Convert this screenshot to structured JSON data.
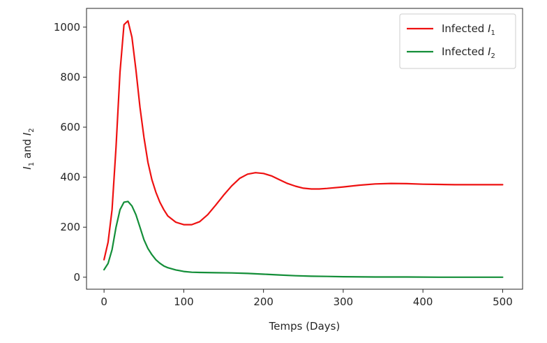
{
  "chart_data": {
    "type": "line",
    "title": "",
    "xlabel": "Temps (Days)",
    "ylabel": "I1 and I2",
    "xlim": [
      -22,
      525
    ],
    "ylim": [
      -48,
      1075
    ],
    "xticks": [
      0,
      100,
      200,
      300,
      400,
      500
    ],
    "yticks": [
      0,
      200,
      400,
      600,
      800,
      1000
    ],
    "grid": false,
    "legend_position": "top-right",
    "series": [
      {
        "name": "Infected I1",
        "label_base": "Infected I",
        "label_sub": "1",
        "color": "#ee1111",
        "x": [
          0,
          5,
          10,
          15,
          20,
          25,
          30,
          35,
          40,
          45,
          50,
          55,
          60,
          65,
          70,
          75,
          80,
          90,
          100,
          110,
          120,
          130,
          140,
          150,
          160,
          170,
          180,
          190,
          200,
          210,
          220,
          230,
          240,
          250,
          260,
          270,
          280,
          300,
          320,
          340,
          360,
          380,
          400,
          420,
          440,
          460,
          480,
          500
        ],
        "y": [
          70,
          140,
          270,
          520,
          820,
          1010,
          1025,
          960,
          830,
          680,
          560,
          460,
          390,
          340,
          300,
          270,
          245,
          220,
          210,
          210,
          222,
          250,
          288,
          328,
          365,
          395,
          412,
          418,
          415,
          405,
          390,
          375,
          364,
          356,
          353,
          353,
          355,
          361,
          368,
          373,
          375,
          374,
          372,
          371,
          370,
          370,
          370,
          370
        ]
      },
      {
        "name": "Infected I2",
        "label_base": "Infected I",
        "label_sub": "2",
        "color": "#138e38",
        "x": [
          0,
          5,
          10,
          15,
          20,
          25,
          30,
          35,
          40,
          45,
          50,
          55,
          60,
          65,
          70,
          75,
          80,
          90,
          100,
          110,
          120,
          140,
          160,
          180,
          200,
          220,
          240,
          260,
          280,
          300,
          340,
          380,
          420,
          460,
          500
        ],
        "y": [
          30,
          55,
          110,
          200,
          270,
          300,
          303,
          285,
          250,
          200,
          150,
          115,
          90,
          70,
          56,
          45,
          38,
          29,
          23,
          20,
          19,
          18,
          17,
          15,
          12,
          9,
          6,
          4,
          3,
          2,
          1,
          1,
          0,
          0,
          0
        ]
      }
    ]
  }
}
